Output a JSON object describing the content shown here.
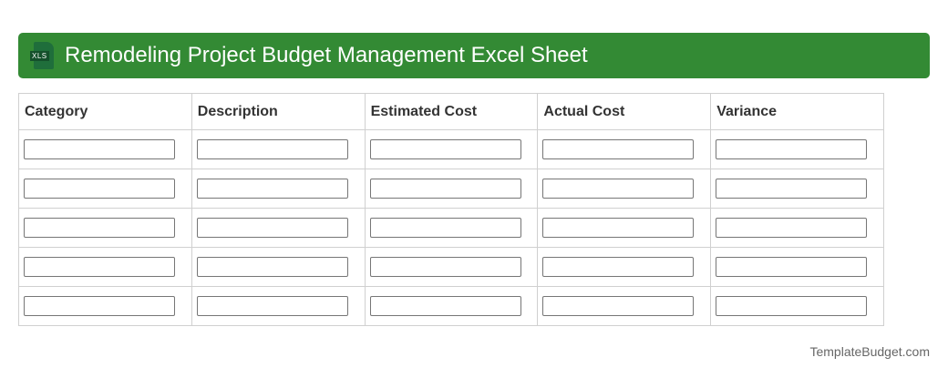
{
  "header": {
    "title": "Remodeling Project Budget Management Excel Sheet",
    "icon": "xls-file-icon",
    "icon_label": "XLS",
    "color": "#338a34"
  },
  "table": {
    "columns": [
      "Category",
      "Description",
      "Estimated Cost",
      "Actual Cost",
      "Variance"
    ],
    "row_count": 5
  },
  "footer": {
    "brand": "TemplateBudget.com"
  }
}
